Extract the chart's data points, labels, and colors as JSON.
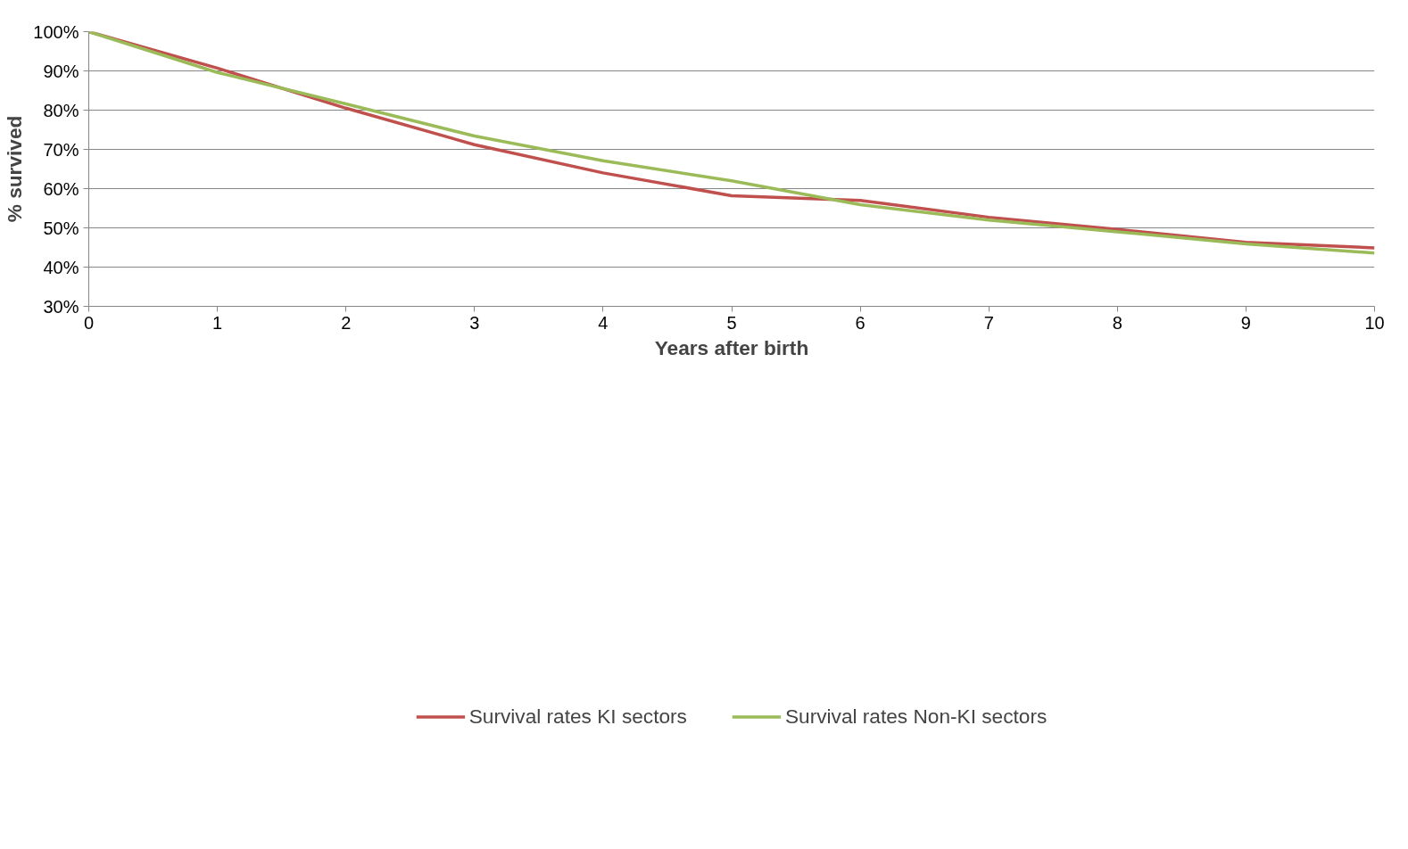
{
  "chart_data": {
    "type": "line",
    "xlabel": "Years after birth",
    "ylabel": "% survived",
    "x": [
      0,
      1,
      2,
      3,
      4,
      5,
      6,
      7,
      8,
      9,
      10
    ],
    "series": [
      {
        "name": "Survival rates KI sectors",
        "color": "#c0504d",
        "values": [
          100,
          90.7,
          80.5,
          71.2,
          64.0,
          58.2,
          57.0,
          52.7,
          49.6,
          46.3,
          44.9
        ]
      },
      {
        "name": "Survival rates Non-KI sectors",
        "color": "#9bbb59",
        "values": [
          100,
          89.6,
          81.6,
          73.4,
          67.1,
          62.0,
          55.9,
          52.0,
          49.0,
          45.9,
          43.6
        ]
      }
    ],
    "xlim": [
      0,
      10
    ],
    "xticks": [
      0,
      1,
      2,
      3,
      4,
      5,
      6,
      7,
      8,
      9,
      10
    ],
    "ylim": [
      30,
      100
    ],
    "yticks": [
      {
        "value": 30,
        "label": "30%"
      },
      {
        "value": 40,
        "label": "40%"
      },
      {
        "value": 50,
        "label": "50%"
      },
      {
        "value": 60,
        "label": "60%"
      },
      {
        "value": 70,
        "label": "70%"
      },
      {
        "value": 80,
        "label": "80%"
      },
      {
        "value": 90,
        "label": "90%"
      },
      {
        "value": 100,
        "label": "100%"
      }
    ],
    "grid": "y",
    "legend": "bottom",
    "marker": "none",
    "line_style": "solid"
  }
}
